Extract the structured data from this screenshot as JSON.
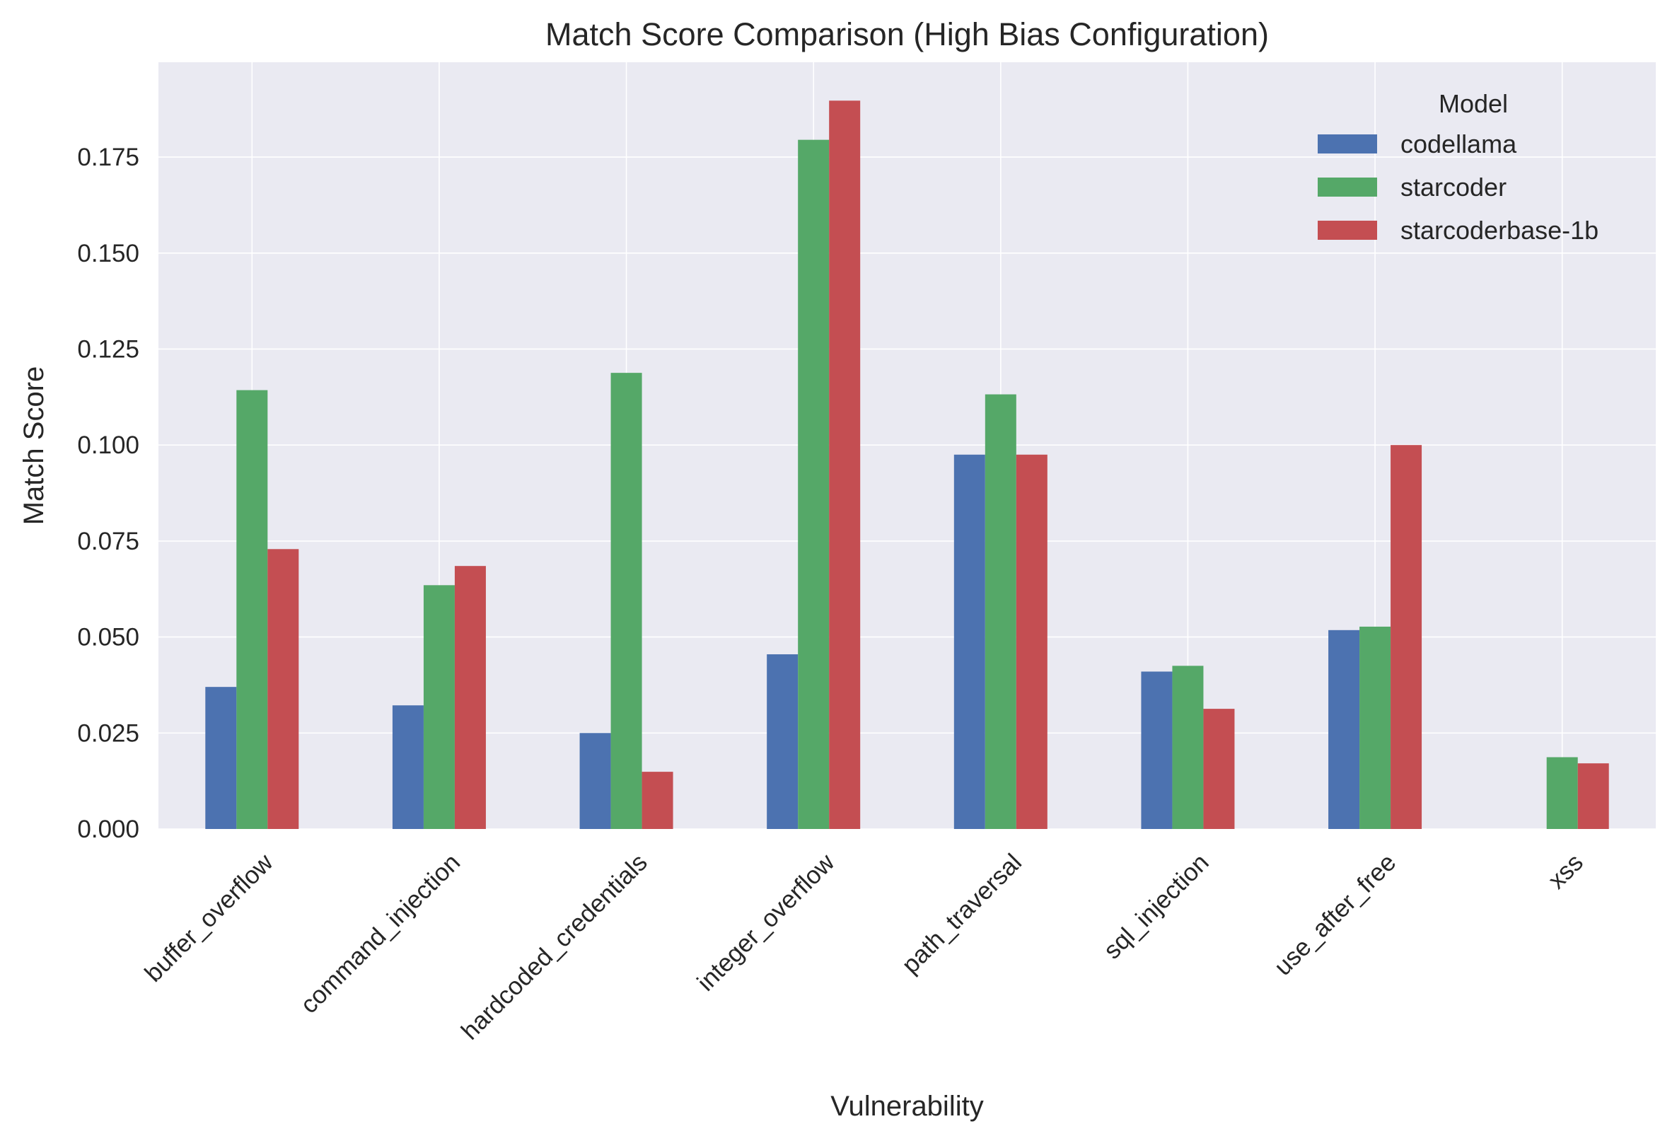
{
  "chart_data": {
    "type": "bar",
    "title": "Match Score Comparison (High Bias Configuration)",
    "xlabel": "Vulnerability",
    "ylabel": "Match Score",
    "categories": [
      "buffer_overflow",
      "command_injection",
      "hardcoded_credentials",
      "integer_overflow",
      "path_traversal",
      "sql_injection",
      "use_after_free",
      "xss"
    ],
    "series": [
      {
        "name": "codellama",
        "color": "#4C72B0",
        "values": [
          0.037,
          0.0322,
          0.025,
          0.0455,
          0.0975,
          0.041,
          0.0518,
          0
        ]
      },
      {
        "name": "starcoder",
        "color": "#55A868",
        "values": [
          0.1143,
          0.0635,
          0.1188,
          0.1795,
          0.1132,
          0.0425,
          0.0527,
          0.0187
        ]
      },
      {
        "name": "starcoderbase-1b",
        "color": "#C44E52",
        "values": [
          0.0729,
          0.0685,
          0.0149,
          0.1897,
          0.0975,
          0.0313,
          0.1,
          0.0171
        ]
      }
    ],
    "yticks": [
      "0.000",
      "0.025",
      "0.050",
      "0.075",
      "0.100",
      "0.125",
      "0.150",
      "0.175"
    ],
    "ylim": [
      0,
      0.1997
    ],
    "grid": true,
    "background": "#EAEAF2",
    "legend": {
      "title": "Model",
      "placement": "top-right"
    }
  }
}
